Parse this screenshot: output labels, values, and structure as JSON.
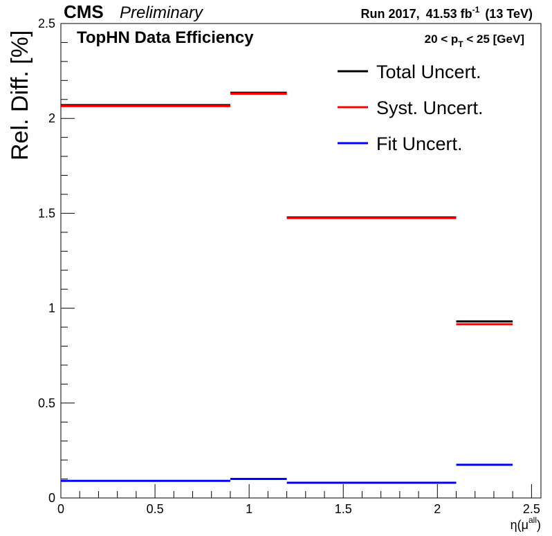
{
  "header": {
    "experiment": "CMS",
    "status": "Preliminary",
    "run_label": "Run 2017,",
    "lumi_value": "41.53 fb",
    "lumi_exp": "-1",
    "energy": "(13 TeV)"
  },
  "chart_data": {
    "type": "line",
    "title": "TopHN Data Efficiency",
    "kinematic_cut": {
      "left": "20 < p",
      "sub": "T",
      "right": " < 25 [GeV]"
    },
    "xlabel": {
      "base": "η(μ",
      "sup": "all",
      "end": ")"
    },
    "ylabel": "Rel. Diff. [%]",
    "xlim": [
      0,
      2.55
    ],
    "ylim": [
      0,
      2.5
    ],
    "xticks": [
      0,
      0.5,
      1,
      1.5,
      2,
      2.5
    ],
    "xtick_labels": [
      "0",
      "0.5",
      "1",
      "1.5",
      "2",
      "2.5"
    ],
    "yticks": [
      0,
      0.5,
      1,
      1.5,
      2,
      2.5
    ],
    "ytick_labels": [
      "0",
      "0.5",
      "1",
      "1.5",
      "2",
      "2.5"
    ],
    "bin_edges": [
      0,
      0.9,
      1.2,
      2.1,
      2.4
    ],
    "legend_position": "top-right",
    "series": [
      {
        "name": "Total Uncert.",
        "color": "#000000",
        "values": [
          2.07,
          2.135,
          1.478,
          0.93
        ]
      },
      {
        "name": "Syst. Uncert.",
        "color": "#ff0000",
        "values": [
          2.065,
          2.13,
          1.475,
          0.915
        ]
      },
      {
        "name": "Fit Uncert.",
        "color": "#0000ff",
        "values": [
          0.09,
          0.1,
          0.08,
          0.175
        ]
      }
    ]
  }
}
